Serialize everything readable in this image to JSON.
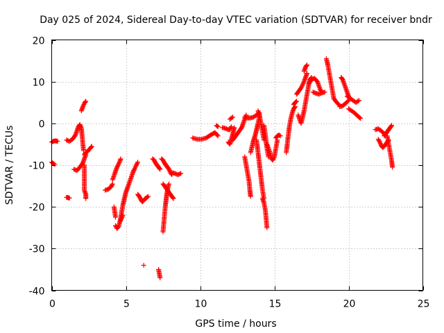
{
  "chart_data": {
    "type": "scatter",
    "title": "Day 025 of 2024, Sidereal Day-to-day VTEC variation (SDTVAR) for receiver bndr",
    "xlabel": "GPS time / hours",
    "ylabel": "SDTVAR / TECUs",
    "xlim": [
      0,
      25
    ],
    "ylim": [
      -40,
      20
    ],
    "xticks": [
      0,
      5,
      10,
      15,
      20,
      25
    ],
    "yticks": [
      -40,
      -30,
      -20,
      -10,
      0,
      10,
      20
    ],
    "xtick_labels": [
      "0",
      "5",
      "10",
      "15",
      "20",
      "25"
    ],
    "ytick_labels": [
      "-40",
      "-30",
      "-20",
      "-10",
      "0",
      "10",
      "20"
    ],
    "grid": true,
    "marker": "+",
    "color": "#ff0000",
    "segments": [
      {
        "x": [
          0.0,
          0.1,
          0.2,
          0.3,
          0.4
        ],
        "y": [
          -4.5,
          -4.3,
          -4.2,
          -4.2,
          -4.3
        ]
      },
      {
        "x": [
          0.0,
          0.1,
          0.2
        ],
        "y": [
          -9.3,
          -9.6,
          -9.8
        ]
      },
      {
        "x": [
          1.0,
          1.1,
          1.2
        ],
        "y": [
          -17.7,
          -17.8,
          -17.9
        ]
      },
      {
        "x": [
          1.0,
          1.2,
          1.4,
          1.6,
          1.7,
          1.8,
          1.9,
          2.0,
          2.05,
          2.1,
          2.15
        ],
        "y": [
          -4.0,
          -4.3,
          -3.8,
          -2.8,
          -1.8,
          -0.8,
          -0.3,
          -1.2,
          -3.0,
          -5.0,
          -6.5
        ]
      },
      {
        "x": [
          1.5,
          1.7,
          1.9,
          2.1,
          2.2,
          2.3
        ],
        "y": [
          -11.0,
          -11.3,
          -10.5,
          -9.5,
          -8.5,
          -7.5
        ]
      },
      {
        "x": [
          2.0,
          2.1,
          2.2,
          2.3
        ],
        "y": [
          3.0,
          4.0,
          4.8,
          5.3
        ]
      },
      {
        "x": [
          2.2,
          2.2,
          2.2,
          2.2,
          2.3,
          2.3
        ],
        "y": [
          -10.0,
          -12.0,
          -14.0,
          -16.0,
          -17.0,
          -18.0
        ]
      },
      {
        "x": [
          2.2,
          2.3,
          2.4,
          2.5,
          2.6,
          2.7
        ],
        "y": [
          -7.5,
          -7.0,
          -6.8,
          -6.3,
          -6.0,
          -5.5
        ]
      },
      {
        "x": [
          3.6,
          3.8,
          4.0,
          4.1
        ],
        "y": [
          -16.0,
          -15.8,
          -15.2,
          -14.5
        ]
      },
      {
        "x": [
          4.1,
          4.2,
          4.3,
          4.4,
          4.5,
          4.6,
          4.65
        ],
        "y": [
          -13.5,
          -12.5,
          -11.5,
          -10.5,
          -9.8,
          -9.0,
          -8.5
        ]
      },
      {
        "x": [
          4.2,
          4.3
        ],
        "y": [
          -20.0,
          -22.5
        ]
      },
      {
        "x": [
          4.3,
          4.4,
          4.5,
          4.6,
          4.7,
          4.8
        ],
        "y": [
          -24.5,
          -25.2,
          -24.8,
          -23.5,
          -22.8,
          -22.0
        ]
      },
      {
        "x": [
          4.6,
          4.7,
          4.8,
          4.9,
          5.0,
          5.1,
          5.2,
          5.3,
          5.4,
          5.5,
          5.6,
          5.7,
          5.8
        ],
        "y": [
          -23.5,
          -21.5,
          -19.5,
          -18.0,
          -16.5,
          -15.5,
          -14.5,
          -13.5,
          -12.5,
          -11.5,
          -10.8,
          -10.0,
          -9.3
        ]
      },
      {
        "x": [
          5.8,
          5.9,
          6.0,
          6.1,
          6.2,
          6.3,
          6.4,
          6.5
        ],
        "y": [
          -17.0,
          -17.5,
          -18.2,
          -18.8,
          -18.5,
          -18.0,
          -17.8,
          -17.5
        ]
      },
      {
        "x": [
          6.2
        ],
        "y": [
          -34.0
        ]
      },
      {
        "x": [
          6.8,
          6.9,
          7.0,
          7.1,
          7.2,
          7.3
        ],
        "y": [
          -8.5,
          -8.8,
          -9.5,
          -10.0,
          -10.5,
          -11.0
        ]
      },
      {
        "x": [
          7.2,
          7.25,
          7.3
        ],
        "y": [
          -35.0,
          -36.0,
          -37.0
        ]
      },
      {
        "x": [
          7.4,
          7.5,
          7.6,
          7.7,
          7.8,
          7.9,
          8.0,
          8.1
        ],
        "y": [
          -8.5,
          -8.8,
          -9.5,
          -10.0,
          -10.5,
          -11.0,
          -11.8,
          -12.3
        ]
      },
      {
        "x": [
          7.5,
          7.55,
          7.6,
          7.65,
          7.7,
          7.75,
          7.8,
          7.85,
          7.9
        ],
        "y": [
          -26.0,
          -24.0,
          -22.0,
          -20.0,
          -18.5,
          -17.0,
          -16.0,
          -15.0,
          -14.5
        ]
      },
      {
        "x": [
          7.5,
          7.7,
          7.9,
          8.1,
          8.2
        ],
        "y": [
          -14.5,
          -15.5,
          -16.5,
          -17.5,
          -18.0
        ]
      },
      {
        "x": [
          8.1,
          8.3,
          8.5,
          8.7
        ],
        "y": [
          -11.8,
          -12.0,
          -12.3,
          -12.0
        ]
      },
      {
        "x": [
          9.5,
          9.8,
          10.1,
          10.4,
          10.7,
          11.0,
          11.2
        ],
        "y": [
          -3.5,
          -3.8,
          -3.8,
          -3.5,
          -2.8,
          -2.2,
          -3.0
        ]
      },
      {
        "x": [
          11.1,
          11.2
        ],
        "y": [
          -0.5,
          -0.8
        ]
      },
      {
        "x": [
          11.5,
          11.7,
          11.9,
          12.0,
          12.1
        ],
        "y": [
          -1.0,
          -1.2,
          -1.5,
          -1.5,
          -0.8
        ]
      },
      {
        "x": [
          11.9,
          12.0,
          12.1,
          12.2,
          12.3
        ],
        "y": [
          -4.5,
          -5.0,
          -4.0,
          -2.5,
          -1.0
        ]
      },
      {
        "x": [
          12.0,
          12.2
        ],
        "y": [
          1.0,
          1.5
        ]
      },
      {
        "x": [
          12.2,
          12.4,
          12.6,
          12.8,
          12.9,
          13.0,
          13.1
        ],
        "y": [
          -4.0,
          -3.0,
          -2.0,
          -1.0,
          0.0,
          1.0,
          2.0
        ]
      },
      {
        "x": [
          13.0,
          13.2,
          13.4,
          13.6,
          13.8,
          14.0
        ],
        "y": [
          1.5,
          1.3,
          1.3,
          1.5,
          2.0,
          2.5
        ]
      },
      {
        "x": [
          13.0,
          13.1,
          13.2,
          13.3,
          13.35,
          13.4
        ],
        "y": [
          -8.0,
          -10.0,
          -12.0,
          -14.0,
          -16.0,
          -17.5
        ]
      },
      {
        "x": [
          13.4,
          13.5,
          13.6,
          13.7,
          13.8,
          13.9,
          14.0
        ],
        "y": [
          -7.0,
          -5.5,
          -4.0,
          -3.0,
          -1.5,
          0.0,
          2.0
        ]
      },
      {
        "x": [
          13.8,
          13.9,
          14.0,
          14.1,
          14.2,
          14.3
        ],
        "y": [
          -4.0,
          -7.0,
          -10.0,
          -13.0,
          -16.0,
          -18.0
        ]
      },
      {
        "x": [
          13.9,
          14.0,
          14.1,
          14.2,
          14.3
        ],
        "y": [
          3.0,
          2.0,
          0.0,
          -2.0,
          -4.0
        ]
      },
      {
        "x": [
          14.2,
          14.3,
          14.4,
          14.45,
          14.5
        ],
        "y": [
          -18.0,
          -19.0,
          -21.0,
          -23.0,
          -25.0
        ]
      },
      {
        "x": [
          14.3,
          14.4,
          14.5,
          14.6
        ],
        "y": [
          -0.5,
          -3.0,
          -6.0,
          -8.0
        ]
      },
      {
        "x": [
          14.5,
          14.6,
          14.7,
          14.8,
          14.9,
          15.0,
          15.1,
          15.2
        ],
        "y": [
          -5.0,
          -6.0,
          -7.0,
          -8.5,
          -8.8,
          -8.0,
          -6.0,
          -4.0
        ]
      },
      {
        "x": [
          15.1,
          15.2,
          15.3,
          15.4
        ],
        "y": [
          -3.5,
          -3.0,
          -2.8,
          -3.0
        ]
      },
      {
        "x": [
          15.8,
          15.9,
          16.0,
          16.1,
          16.2,
          16.3,
          16.4
        ],
        "y": [
          -7.0,
          -4.0,
          -1.0,
          1.0,
          2.5,
          3.5,
          4.0
        ]
      },
      {
        "x": [
          16.3,
          16.4,
          16.5
        ],
        "y": [
          4.5,
          5.0,
          5.3
        ]
      },
      {
        "x": [
          16.6,
          16.7,
          16.8,
          16.9,
          17.0,
          17.1,
          17.2,
          17.3,
          17.4,
          17.5
        ],
        "y": [
          2.0,
          1.0,
          0.0,
          1.5,
          3.0,
          5.0,
          7.0,
          9.0,
          10.5,
          11.0
        ]
      },
      {
        "x": [
          16.5,
          16.6,
          16.8,
          17.0,
          17.2
        ],
        "y": [
          7.0,
          7.5,
          8.5,
          10.0,
          12.0
        ]
      },
      {
        "x": [
          17.0,
          17.1,
          17.2
        ],
        "y": [
          12.5,
          13.5,
          14.0
        ]
      },
      {
        "x": [
          17.3,
          17.5,
          17.7,
          17.9,
          18.0,
          18.1,
          18.2
        ],
        "y": [
          9.5,
          10.5,
          10.8,
          10.0,
          9.0,
          8.0,
          7.5
        ]
      },
      {
        "x": [
          17.6,
          17.8,
          18.0,
          18.2,
          18.4
        ],
        "y": [
          7.5,
          7.2,
          7.0,
          7.3,
          7.5
        ]
      },
      {
        "x": [
          18.5,
          18.6,
          18.7,
          18.8,
          18.9,
          19.0,
          19.2,
          19.4
        ],
        "y": [
          15.5,
          14.0,
          12.0,
          10.0,
          8.0,
          6.0,
          5.0,
          4.3
        ]
      },
      {
        "x": [
          19.4,
          19.6,
          19.8,
          20.0
        ],
        "y": [
          4.0,
          4.2,
          4.8,
          5.5
        ]
      },
      {
        "x": [
          19.5,
          19.6,
          19.7,
          19.8,
          19.9,
          20.0
        ],
        "y": [
          11.0,
          10.5,
          9.5,
          8.5,
          7.5,
          6.5
        ]
      },
      {
        "x": [
          19.9,
          20.1,
          20.3,
          20.5,
          20.7
        ],
        "y": [
          6.5,
          6.0,
          5.5,
          5.0,
          5.5
        ]
      },
      {
        "x": [
          20.0,
          20.2,
          20.4,
          20.6,
          20.8
        ],
        "y": [
          3.5,
          3.0,
          2.5,
          1.8,
          1.2
        ]
      },
      {
        "x": [
          21.8,
          22.0,
          22.2,
          22.4,
          22.5
        ],
        "y": [
          -1.5,
          -1.3,
          -1.8,
          -2.5,
          -3.0
        ]
      },
      {
        "x": [
          22.0,
          22.1,
          22.2,
          22.3,
          22.4,
          22.5,
          22.6,
          22.7
        ],
        "y": [
          -3.8,
          -4.5,
          -5.3,
          -5.8,
          -5.5,
          -5.0,
          -4.5,
          -4.0
        ]
      },
      {
        "x": [
          22.4,
          22.5,
          22.6,
          22.7,
          22.8,
          22.9
        ],
        "y": [
          -3.0,
          -2.5,
          -2.0,
          -1.5,
          -1.0,
          -0.5
        ]
      },
      {
        "x": [
          22.6,
          22.7,
          22.8,
          22.9,
          22.95
        ],
        "y": [
          -3.0,
          -5.0,
          -7.0,
          -9.0,
          -10.5
        ]
      }
    ]
  }
}
